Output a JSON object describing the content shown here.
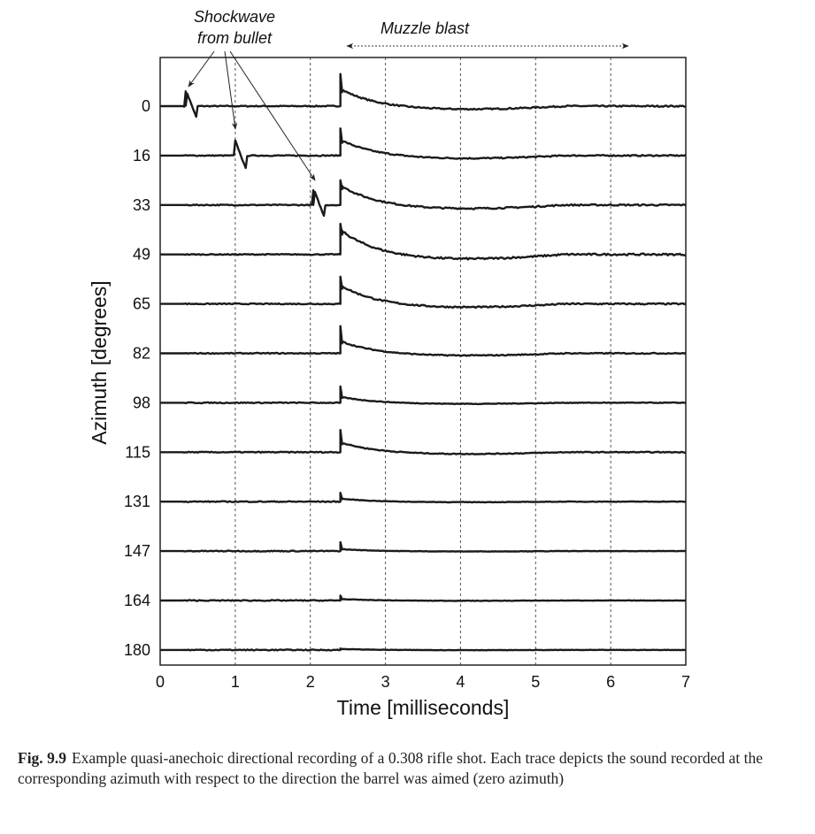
{
  "chart_data": {
    "type": "line",
    "xlabel": "Time [milliseconds]",
    "ylabel": "Azimuth [degrees]",
    "xlim": [
      0,
      7
    ],
    "x_ticks": [
      "0",
      "1",
      "2",
      "3",
      "4",
      "5",
      "6",
      "7"
    ],
    "grid": "vertical dotted",
    "muzzle_blast_onset_ms": 2.4,
    "series": [
      {
        "azimuth": "0",
        "shockwave_ms": 0.35,
        "peak": 0.65,
        "tail": 0.35
      },
      {
        "azimuth": "16",
        "shockwave_ms": 1.0,
        "peak": 0.55,
        "tail": 0.32
      },
      {
        "azimuth": "33",
        "shockwave_ms": 2.05,
        "peak": 0.5,
        "tail": 0.4
      },
      {
        "azimuth": "49",
        "shockwave_ms": null,
        "peak": 0.62,
        "tail": 0.5
      },
      {
        "azimuth": "65",
        "shockwave_ms": null,
        "peak": 0.55,
        "tail": 0.38
      },
      {
        "azimuth": "82",
        "shockwave_ms": null,
        "peak": 0.55,
        "tail": 0.25
      },
      {
        "azimuth": "98",
        "shockwave_ms": null,
        "peak": 0.33,
        "tail": 0.12
      },
      {
        "azimuth": "115",
        "shockwave_ms": null,
        "peak": 0.45,
        "tail": 0.2
      },
      {
        "azimuth": "131",
        "shockwave_ms": null,
        "peak": 0.18,
        "tail": 0.06
      },
      {
        "azimuth": "147",
        "shockwave_ms": null,
        "peak": 0.18,
        "tail": 0.04
      },
      {
        "azimuth": "164",
        "shockwave_ms": null,
        "peak": 0.1,
        "tail": 0.03
      },
      {
        "azimuth": "180",
        "shockwave_ms": null,
        "peak": 0.03,
        "tail": 0.02
      }
    ],
    "annotations": {
      "shockwave_line1": "Shockwave",
      "shockwave_line2": "from bullet",
      "muzzle_blast": "Muzzle blast"
    }
  },
  "caption": {
    "label": "Fig. 9.9",
    "text": "Example quasi-anechoic directional recording of a 0.308 rifle shot. Each trace depicts the sound recorded at the corresponding azimuth with respect to the direction the barrel was aimed (zero azimuth)"
  }
}
